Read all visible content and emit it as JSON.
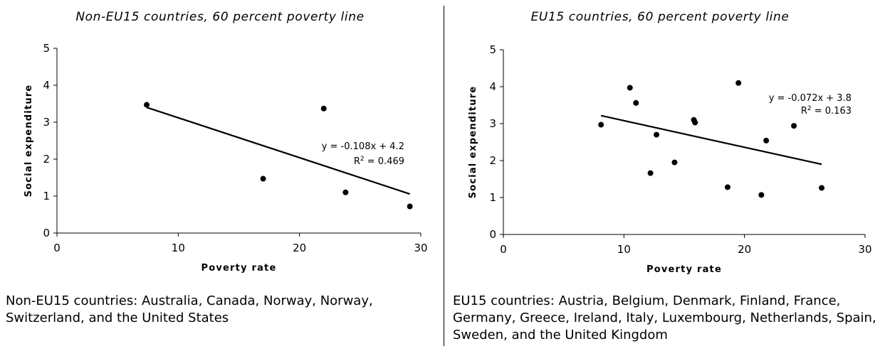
{
  "chart_data": [
    {
      "type": "scatter",
      "title": "Non-EU15 countries, 60 percent poverty line",
      "xlabel": "Poverty rate",
      "ylabel": "Social expenditure",
      "xlim": [
        0,
        30
      ],
      "ylim": [
        0,
        5
      ],
      "x_ticks": [
        "0",
        "10",
        "20",
        "30"
      ],
      "y_ticks": [
        "0",
        "1",
        "2",
        "3",
        "4",
        "5"
      ],
      "grid": false,
      "points": [
        {
          "x": 7.4,
          "y": 3.47
        },
        {
          "x": 17.0,
          "y": 1.47
        },
        {
          "x": 22.0,
          "y": 3.37
        },
        {
          "x": 23.8,
          "y": 1.1
        },
        {
          "x": 29.1,
          "y": 0.72
        }
      ],
      "trendline": {
        "slope": -0.108,
        "intercept": 4.2,
        "x_range": [
          7.4,
          29.1
        ]
      },
      "equation": "y = -0.108x + 4.2",
      "r_squared": {
        "prefix": "R",
        "sup": "2",
        "rest": " = 0.469"
      },
      "note": "Non-EU15 countries: Australia, Canada, Norway, Norway, Switzerland, and the United States"
    },
    {
      "type": "scatter",
      "title": "EU15 countries, 60 percent poverty line",
      "xlabel": "Poverty rate",
      "ylabel": "Social expenditure",
      "xlim": [
        0,
        30
      ],
      "ylim": [
        0,
        5
      ],
      "x_ticks": [
        "0",
        "10",
        "20",
        "30"
      ],
      "y_ticks": [
        "0",
        "1",
        "2",
        "3",
        "4",
        "5"
      ],
      "grid": false,
      "points": [
        {
          "x": 8.1,
          "y": 2.97
        },
        {
          "x": 10.5,
          "y": 3.97
        },
        {
          "x": 11.0,
          "y": 3.56
        },
        {
          "x": 12.2,
          "y": 1.66
        },
        {
          "x": 12.7,
          "y": 2.7
        },
        {
          "x": 14.2,
          "y": 1.95
        },
        {
          "x": 15.8,
          "y": 3.1
        },
        {
          "x": 15.9,
          "y": 3.03
        },
        {
          "x": 18.6,
          "y": 1.28
        },
        {
          "x": 19.5,
          "y": 4.1
        },
        {
          "x": 21.4,
          "y": 1.07
        },
        {
          "x": 21.8,
          "y": 2.54
        },
        {
          "x": 24.1,
          "y": 2.94
        },
        {
          "x": 26.4,
          "y": 1.26
        }
      ],
      "trendline": {
        "slope": -0.072,
        "intercept": 3.8,
        "x_range": [
          8.1,
          26.4
        ]
      },
      "equation": "y = -0.072x + 3.8",
      "r_squared": {
        "prefix": "R",
        "sup": "2",
        "rest": " = 0.163"
      },
      "note": "EU15 countries: Austria, Belgium, Denmark, Finland, France, Germany, Greece, Ireland, Italy, Luxembourg, Netherlands, Spain, Sweden, and the United Kingdom"
    }
  ]
}
